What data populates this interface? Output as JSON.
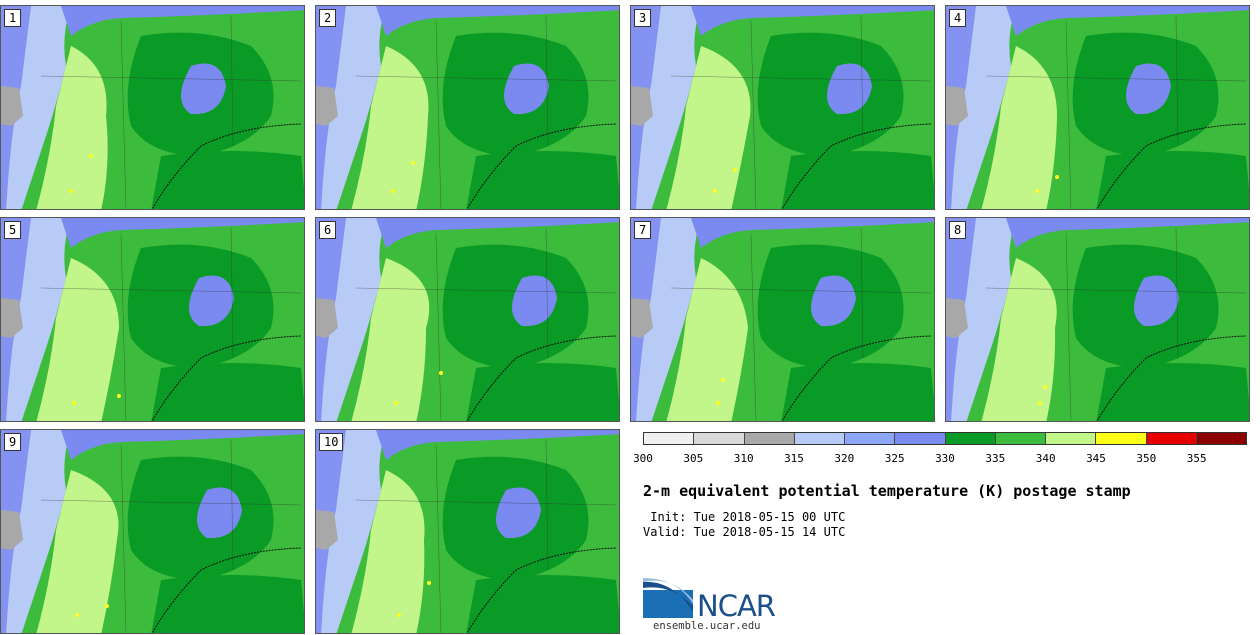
{
  "panels": [
    {
      "label": "1"
    },
    {
      "label": "2"
    },
    {
      "label": "3"
    },
    {
      "label": "4"
    },
    {
      "label": "5"
    },
    {
      "label": "6"
    },
    {
      "label": "7"
    },
    {
      "label": "8"
    },
    {
      "label": "9"
    },
    {
      "label": "10"
    }
  ],
  "colorbar": {
    "colors": [
      "#f0f0f0",
      "#d9d9d9",
      "#a8a8a8",
      "#b8cbf6",
      "#8ea6f7",
      "#7a8af0",
      "#0a9a26",
      "#3dbb3d",
      "#c2f58a",
      "#ffff19",
      "#e60000",
      "#8c0000"
    ],
    "ticks": [
      "300",
      "305",
      "310",
      "315",
      "320",
      "325",
      "330",
      "335",
      "340",
      "345",
      "350",
      "355"
    ]
  },
  "title": "2-m equivalent potential temperature (K) postage stamp",
  "init_line": " Init: Tue 2018-05-15 00 UTC",
  "valid_line": "Valid: Tue 2018-05-15 14 UTC",
  "logo": {
    "text": "NCAR",
    "url": "ensemble.ucar.edu"
  },
  "colors": {
    "dark_green": "#0a9a26",
    "mid_green": "#3dbb3d",
    "light_green": "#c2f58a",
    "light_blue": "#b8cbf6",
    "mid_blue": "#7a8af0",
    "gray": "#a8a8a8",
    "yellow": "#ffff19"
  }
}
